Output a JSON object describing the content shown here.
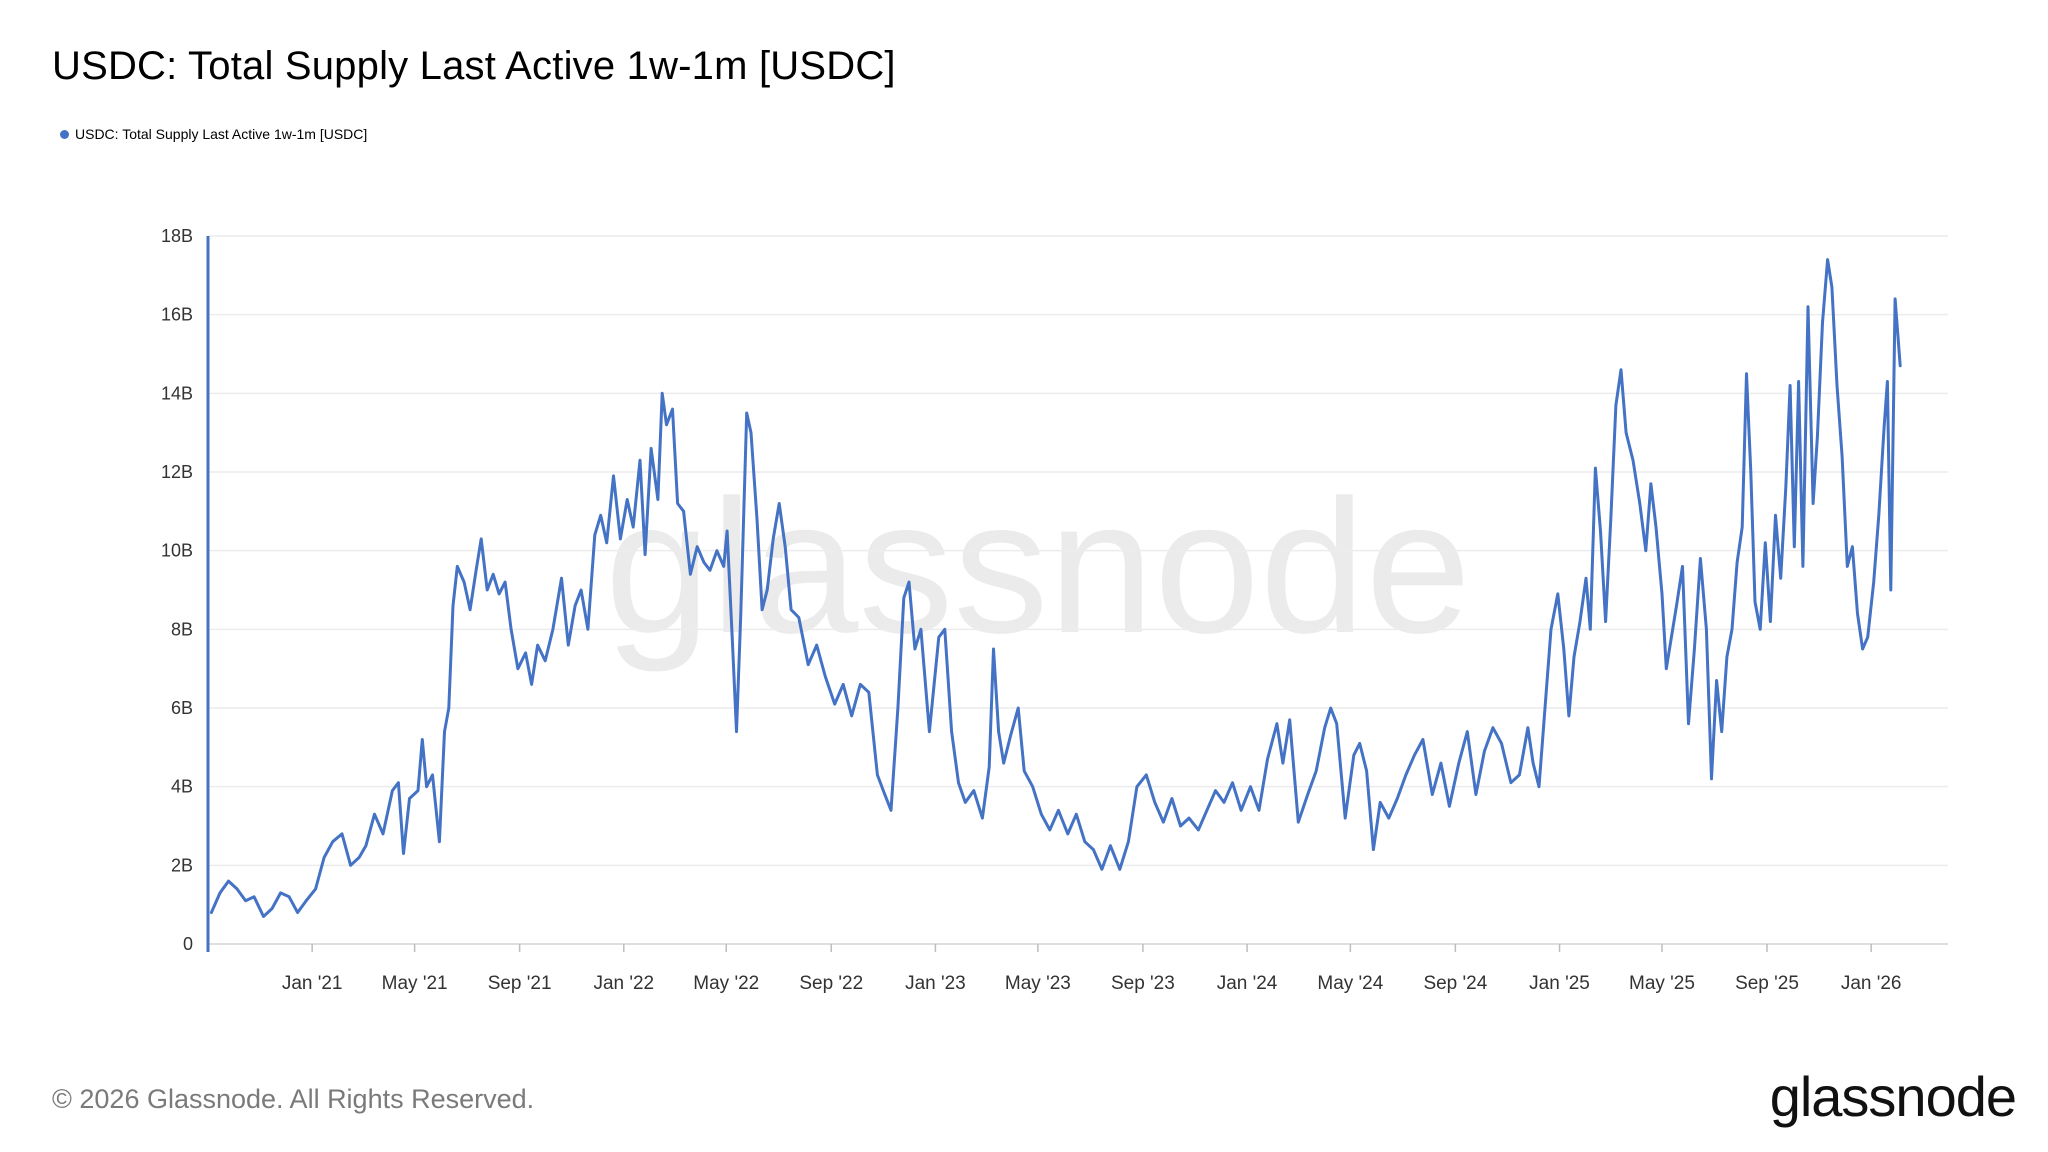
{
  "header": {
    "title": "USDC: Total Supply Last Active 1w-1m [USDC]"
  },
  "legend": {
    "label": "USDC: Total Supply Last Active 1w-1m [USDC]",
    "color": "#4472c4"
  },
  "watermark": "glassnode",
  "footer": {
    "copyright": "© 2026 Glassnode. All Rights Reserved.",
    "brand": "glassnode"
  },
  "chart_data": {
    "type": "line",
    "title": "USDC: Total Supply Last Active 1w-1m [USDC]",
    "xlabel": "",
    "ylabel": "",
    "ylim": [
      0,
      18000000000
    ],
    "xlim": [
      "2020-09-01",
      "2026-04-01"
    ],
    "grid": true,
    "legend_position": "top-left",
    "y_ticks": [
      {
        "value": 0,
        "label": "0"
      },
      {
        "value": 2000000000,
        "label": "2B"
      },
      {
        "value": 4000000000,
        "label": "4B"
      },
      {
        "value": 6000000000,
        "label": "6B"
      },
      {
        "value": 8000000000,
        "label": "8B"
      },
      {
        "value": 10000000000,
        "label": "10B"
      },
      {
        "value": 12000000000,
        "label": "12B"
      },
      {
        "value": 14000000000,
        "label": "14B"
      },
      {
        "value": 16000000000,
        "label": "16B"
      },
      {
        "value": 18000000000,
        "label": "18B"
      }
    ],
    "x_ticks": [
      {
        "date": "2021-01-01",
        "label": "Jan '21"
      },
      {
        "date": "2021-05-01",
        "label": "May '21"
      },
      {
        "date": "2021-09-01",
        "label": "Sep '21"
      },
      {
        "date": "2022-01-01",
        "label": "Jan '22"
      },
      {
        "date": "2022-05-01",
        "label": "May '22"
      },
      {
        "date": "2022-09-01",
        "label": "Sep '22"
      },
      {
        "date": "2023-01-01",
        "label": "Jan '23"
      },
      {
        "date": "2023-05-01",
        "label": "May '23"
      },
      {
        "date": "2023-09-01",
        "label": "Sep '23"
      },
      {
        "date": "2024-01-01",
        "label": "Jan '24"
      },
      {
        "date": "2024-05-01",
        "label": "May '24"
      },
      {
        "date": "2024-09-01",
        "label": "Sep '24"
      },
      {
        "date": "2025-01-01",
        "label": "Jan '25"
      },
      {
        "date": "2025-05-01",
        "label": "May '25"
      },
      {
        "date": "2025-09-01",
        "label": "Sep '25"
      },
      {
        "date": "2026-01-01",
        "label": "Jan '26"
      }
    ],
    "series": [
      {
        "name": "USDC: Total Supply Last Active 1w-1m [USDC]",
        "color": "#4472c4",
        "points": [
          [
            "2020-09-05",
            0.8
          ],
          [
            "2020-09-15",
            1.3
          ],
          [
            "2020-09-25",
            1.6
          ],
          [
            "2020-10-05",
            1.4
          ],
          [
            "2020-10-15",
            1.1
          ],
          [
            "2020-10-25",
            1.2
          ],
          [
            "2020-11-05",
            0.7
          ],
          [
            "2020-11-15",
            0.9
          ],
          [
            "2020-11-25",
            1.3
          ],
          [
            "2020-12-05",
            1.2
          ],
          [
            "2020-12-15",
            0.8
          ],
          [
            "2020-12-25",
            1.1
          ],
          [
            "2021-01-05",
            1.4
          ],
          [
            "2021-01-15",
            2.2
          ],
          [
            "2021-01-25",
            2.6
          ],
          [
            "2021-02-05",
            2.8
          ],
          [
            "2021-02-15",
            2.0
          ],
          [
            "2021-02-25",
            2.2
          ],
          [
            "2021-03-05",
            2.5
          ],
          [
            "2021-03-15",
            3.3
          ],
          [
            "2021-03-25",
            2.8
          ],
          [
            "2021-04-05",
            3.9
          ],
          [
            "2021-04-12",
            4.1
          ],
          [
            "2021-04-18",
            2.3
          ],
          [
            "2021-04-25",
            3.7
          ],
          [
            "2021-05-05",
            3.9
          ],
          [
            "2021-05-10",
            5.2
          ],
          [
            "2021-05-15",
            4.0
          ],
          [
            "2021-05-22",
            4.3
          ],
          [
            "2021-05-30",
            2.6
          ],
          [
            "2021-06-05",
            5.4
          ],
          [
            "2021-06-10",
            6.0
          ],
          [
            "2021-06-15",
            8.6
          ],
          [
            "2021-06-20",
            9.6
          ],
          [
            "2021-06-28",
            9.2
          ],
          [
            "2021-07-05",
            8.5
          ],
          [
            "2021-07-12",
            9.5
          ],
          [
            "2021-07-18",
            10.3
          ],
          [
            "2021-07-25",
            9.0
          ],
          [
            "2021-08-01",
            9.4
          ],
          [
            "2021-08-08",
            8.9
          ],
          [
            "2021-08-15",
            9.2
          ],
          [
            "2021-08-22",
            8.0
          ],
          [
            "2021-08-30",
            7.0
          ],
          [
            "2021-09-08",
            7.4
          ],
          [
            "2021-09-15",
            6.6
          ],
          [
            "2021-09-22",
            7.6
          ],
          [
            "2021-10-01",
            7.2
          ],
          [
            "2021-10-10",
            8.0
          ],
          [
            "2021-10-20",
            9.3
          ],
          [
            "2021-10-28",
            7.6
          ],
          [
            "2021-11-05",
            8.6
          ],
          [
            "2021-11-12",
            9.0
          ],
          [
            "2021-11-20",
            8.0
          ],
          [
            "2021-11-28",
            10.4
          ],
          [
            "2021-12-05",
            10.9
          ],
          [
            "2021-12-12",
            10.2
          ],
          [
            "2021-12-20",
            11.9
          ],
          [
            "2021-12-28",
            10.3
          ],
          [
            "2022-01-05",
            11.3
          ],
          [
            "2022-01-12",
            10.6
          ],
          [
            "2022-01-20",
            12.3
          ],
          [
            "2022-01-26",
            9.9
          ],
          [
            "2022-02-02",
            12.6
          ],
          [
            "2022-02-10",
            11.3
          ],
          [
            "2022-02-15",
            14.0
          ],
          [
            "2022-02-20",
            13.2
          ],
          [
            "2022-02-27",
            13.6
          ],
          [
            "2022-03-05",
            11.2
          ],
          [
            "2022-03-12",
            11.0
          ],
          [
            "2022-03-20",
            9.4
          ],
          [
            "2022-03-28",
            10.1
          ],
          [
            "2022-04-05",
            9.7
          ],
          [
            "2022-04-12",
            9.5
          ],
          [
            "2022-04-20",
            10.0
          ],
          [
            "2022-04-28",
            9.6
          ],
          [
            "2022-05-02",
            10.5
          ],
          [
            "2022-05-08",
            7.8
          ],
          [
            "2022-05-13",
            5.4
          ],
          [
            "2022-05-18",
            8.4
          ],
          [
            "2022-05-25",
            13.5
          ],
          [
            "2022-05-30",
            13.0
          ],
          [
            "2022-06-06",
            10.8
          ],
          [
            "2022-06-12",
            8.5
          ],
          [
            "2022-06-18",
            9.0
          ],
          [
            "2022-06-25",
            10.3
          ],
          [
            "2022-07-02",
            11.2
          ],
          [
            "2022-07-09",
            10.1
          ],
          [
            "2022-07-16",
            8.5
          ],
          [
            "2022-07-25",
            8.3
          ],
          [
            "2022-08-05",
            7.1
          ],
          [
            "2022-08-15",
            7.6
          ],
          [
            "2022-08-25",
            6.8
          ],
          [
            "2022-09-05",
            6.1
          ],
          [
            "2022-09-15",
            6.6
          ],
          [
            "2022-09-25",
            5.8
          ],
          [
            "2022-10-05",
            6.6
          ],
          [
            "2022-10-15",
            6.4
          ],
          [
            "2022-10-25",
            4.3
          ],
          [
            "2022-11-01",
            3.9
          ],
          [
            "2022-11-10",
            3.4
          ],
          [
            "2022-11-18",
            6.0
          ],
          [
            "2022-11-25",
            8.8
          ],
          [
            "2022-12-01",
            9.2
          ],
          [
            "2022-12-08",
            7.5
          ],
          [
            "2022-12-15",
            8.0
          ],
          [
            "2022-12-25",
            5.4
          ],
          [
            "2023-01-05",
            7.8
          ],
          [
            "2023-01-12",
            8.0
          ],
          [
            "2023-01-20",
            5.4
          ],
          [
            "2023-01-28",
            4.1
          ],
          [
            "2023-02-05",
            3.6
          ],
          [
            "2023-02-15",
            3.9
          ],
          [
            "2023-02-25",
            3.2
          ],
          [
            "2023-03-05",
            4.5
          ],
          [
            "2023-03-10",
            7.5
          ],
          [
            "2023-03-16",
            5.4
          ],
          [
            "2023-03-22",
            4.6
          ],
          [
            "2023-03-30",
            5.3
          ],
          [
            "2023-04-08",
            6.0
          ],
          [
            "2023-04-15",
            4.4
          ],
          [
            "2023-04-25",
            4.0
          ],
          [
            "2023-05-05",
            3.3
          ],
          [
            "2023-05-15",
            2.9
          ],
          [
            "2023-05-25",
            3.4
          ],
          [
            "2023-06-05",
            2.8
          ],
          [
            "2023-06-15",
            3.3
          ],
          [
            "2023-06-25",
            2.6
          ],
          [
            "2023-07-05",
            2.4
          ],
          [
            "2023-07-15",
            1.9
          ],
          [
            "2023-07-25",
            2.5
          ],
          [
            "2023-08-05",
            1.9
          ],
          [
            "2023-08-15",
            2.6
          ],
          [
            "2023-08-25",
            4.0
          ],
          [
            "2023-09-05",
            4.3
          ],
          [
            "2023-09-15",
            3.6
          ],
          [
            "2023-09-25",
            3.1
          ],
          [
            "2023-10-05",
            3.7
          ],
          [
            "2023-10-15",
            3.0
          ],
          [
            "2023-10-25",
            3.2
          ],
          [
            "2023-11-05",
            2.9
          ],
          [
            "2023-11-15",
            3.4
          ],
          [
            "2023-11-25",
            3.9
          ],
          [
            "2023-12-05",
            3.6
          ],
          [
            "2023-12-15",
            4.1
          ],
          [
            "2023-12-25",
            3.4
          ],
          [
            "2024-01-05",
            4.0
          ],
          [
            "2024-01-15",
            3.4
          ],
          [
            "2024-01-25",
            4.7
          ],
          [
            "2024-02-05",
            5.6
          ],
          [
            "2024-02-12",
            4.6
          ],
          [
            "2024-02-20",
            5.7
          ],
          [
            "2024-03-01",
            3.1
          ],
          [
            "2024-03-12",
            3.8
          ],
          [
            "2024-03-22",
            4.4
          ],
          [
            "2024-04-01",
            5.5
          ],
          [
            "2024-04-08",
            6.0
          ],
          [
            "2024-04-15",
            5.6
          ],
          [
            "2024-04-25",
            3.2
          ],
          [
            "2024-05-05",
            4.8
          ],
          [
            "2024-05-12",
            5.1
          ],
          [
            "2024-05-20",
            4.4
          ],
          [
            "2024-05-28",
            2.4
          ],
          [
            "2024-06-05",
            3.6
          ],
          [
            "2024-06-15",
            3.2
          ],
          [
            "2024-06-25",
            3.7
          ],
          [
            "2024-07-05",
            4.3
          ],
          [
            "2024-07-15",
            4.8
          ],
          [
            "2024-07-25",
            5.2
          ],
          [
            "2024-08-05",
            3.8
          ],
          [
            "2024-08-15",
            4.6
          ],
          [
            "2024-08-25",
            3.5
          ],
          [
            "2024-09-05",
            4.6
          ],
          [
            "2024-09-15",
            5.4
          ],
          [
            "2024-09-25",
            3.8
          ],
          [
            "2024-10-05",
            4.9
          ],
          [
            "2024-10-15",
            5.5
          ],
          [
            "2024-10-25",
            5.1
          ],
          [
            "2024-11-05",
            4.1
          ],
          [
            "2024-11-15",
            4.3
          ],
          [
            "2024-11-25",
            5.5
          ],
          [
            "2024-12-01",
            4.6
          ],
          [
            "2024-12-08",
            4.0
          ],
          [
            "2024-12-15",
            6.0
          ],
          [
            "2024-12-22",
            8.0
          ],
          [
            "2024-12-30",
            8.9
          ],
          [
            "2025-01-06",
            7.5
          ],
          [
            "2025-01-12",
            5.8
          ],
          [
            "2025-01-18",
            7.3
          ],
          [
            "2025-01-25",
            8.2
          ],
          [
            "2025-02-01",
            9.3
          ],
          [
            "2025-02-06",
            8.0
          ],
          [
            "2025-02-12",
            12.1
          ],
          [
            "2025-02-18",
            10.5
          ],
          [
            "2025-02-24",
            8.2
          ],
          [
            "2025-03-02",
            10.8
          ],
          [
            "2025-03-08",
            13.7
          ],
          [
            "2025-03-14",
            14.6
          ],
          [
            "2025-03-20",
            13.0
          ],
          [
            "2025-03-28",
            12.3
          ],
          [
            "2025-04-05",
            11.2
          ],
          [
            "2025-04-12",
            10.0
          ],
          [
            "2025-04-18",
            11.7
          ],
          [
            "2025-04-24",
            10.6
          ],
          [
            "2025-05-01",
            8.9
          ],
          [
            "2025-05-06",
            7.0
          ],
          [
            "2025-05-12",
            7.8
          ],
          [
            "2025-05-18",
            8.6
          ],
          [
            "2025-05-25",
            9.6
          ],
          [
            "2025-06-01",
            5.6
          ],
          [
            "2025-06-08",
            7.5
          ],
          [
            "2025-06-15",
            9.8
          ],
          [
            "2025-06-22",
            8.0
          ],
          [
            "2025-06-28",
            4.2
          ],
          [
            "2025-07-04",
            6.7
          ],
          [
            "2025-07-10",
            5.4
          ],
          [
            "2025-07-16",
            7.3
          ],
          [
            "2025-07-22",
            8.0
          ],
          [
            "2025-07-28",
            9.7
          ],
          [
            "2025-08-03",
            10.6
          ],
          [
            "2025-08-08",
            14.5
          ],
          [
            "2025-08-13",
            12.0
          ],
          [
            "2025-08-18",
            8.7
          ],
          [
            "2025-08-24",
            8.0
          ],
          [
            "2025-08-30",
            10.2
          ],
          [
            "2025-09-05",
            8.2
          ],
          [
            "2025-09-11",
            10.9
          ],
          [
            "2025-09-17",
            9.3
          ],
          [
            "2025-09-23",
            11.6
          ],
          [
            "2025-09-28",
            14.2
          ],
          [
            "2025-10-03",
            10.1
          ],
          [
            "2025-10-08",
            14.3
          ],
          [
            "2025-10-13",
            9.6
          ],
          [
            "2025-10-19",
            16.2
          ],
          [
            "2025-10-25",
            11.2
          ],
          [
            "2025-10-30",
            12.9
          ],
          [
            "2025-11-05",
            15.8
          ],
          [
            "2025-11-11",
            17.4
          ],
          [
            "2025-11-16",
            16.7
          ],
          [
            "2025-11-22",
            14.2
          ],
          [
            "2025-11-28",
            12.4
          ],
          [
            "2025-12-04",
            9.6
          ],
          [
            "2025-12-10",
            10.1
          ],
          [
            "2025-12-16",
            8.4
          ],
          [
            "2025-12-22",
            7.5
          ],
          [
            "2025-12-28",
            7.8
          ],
          [
            "2026-01-04",
            9.2
          ],
          [
            "2026-01-10",
            10.9
          ],
          [
            "2026-01-16",
            13.1
          ],
          [
            "2026-01-20",
            14.3
          ],
          [
            "2026-01-24",
            9.0
          ],
          [
            "2026-01-29",
            16.4
          ],
          [
            "2026-02-04",
            14.7
          ]
        ]
      }
    ]
  }
}
